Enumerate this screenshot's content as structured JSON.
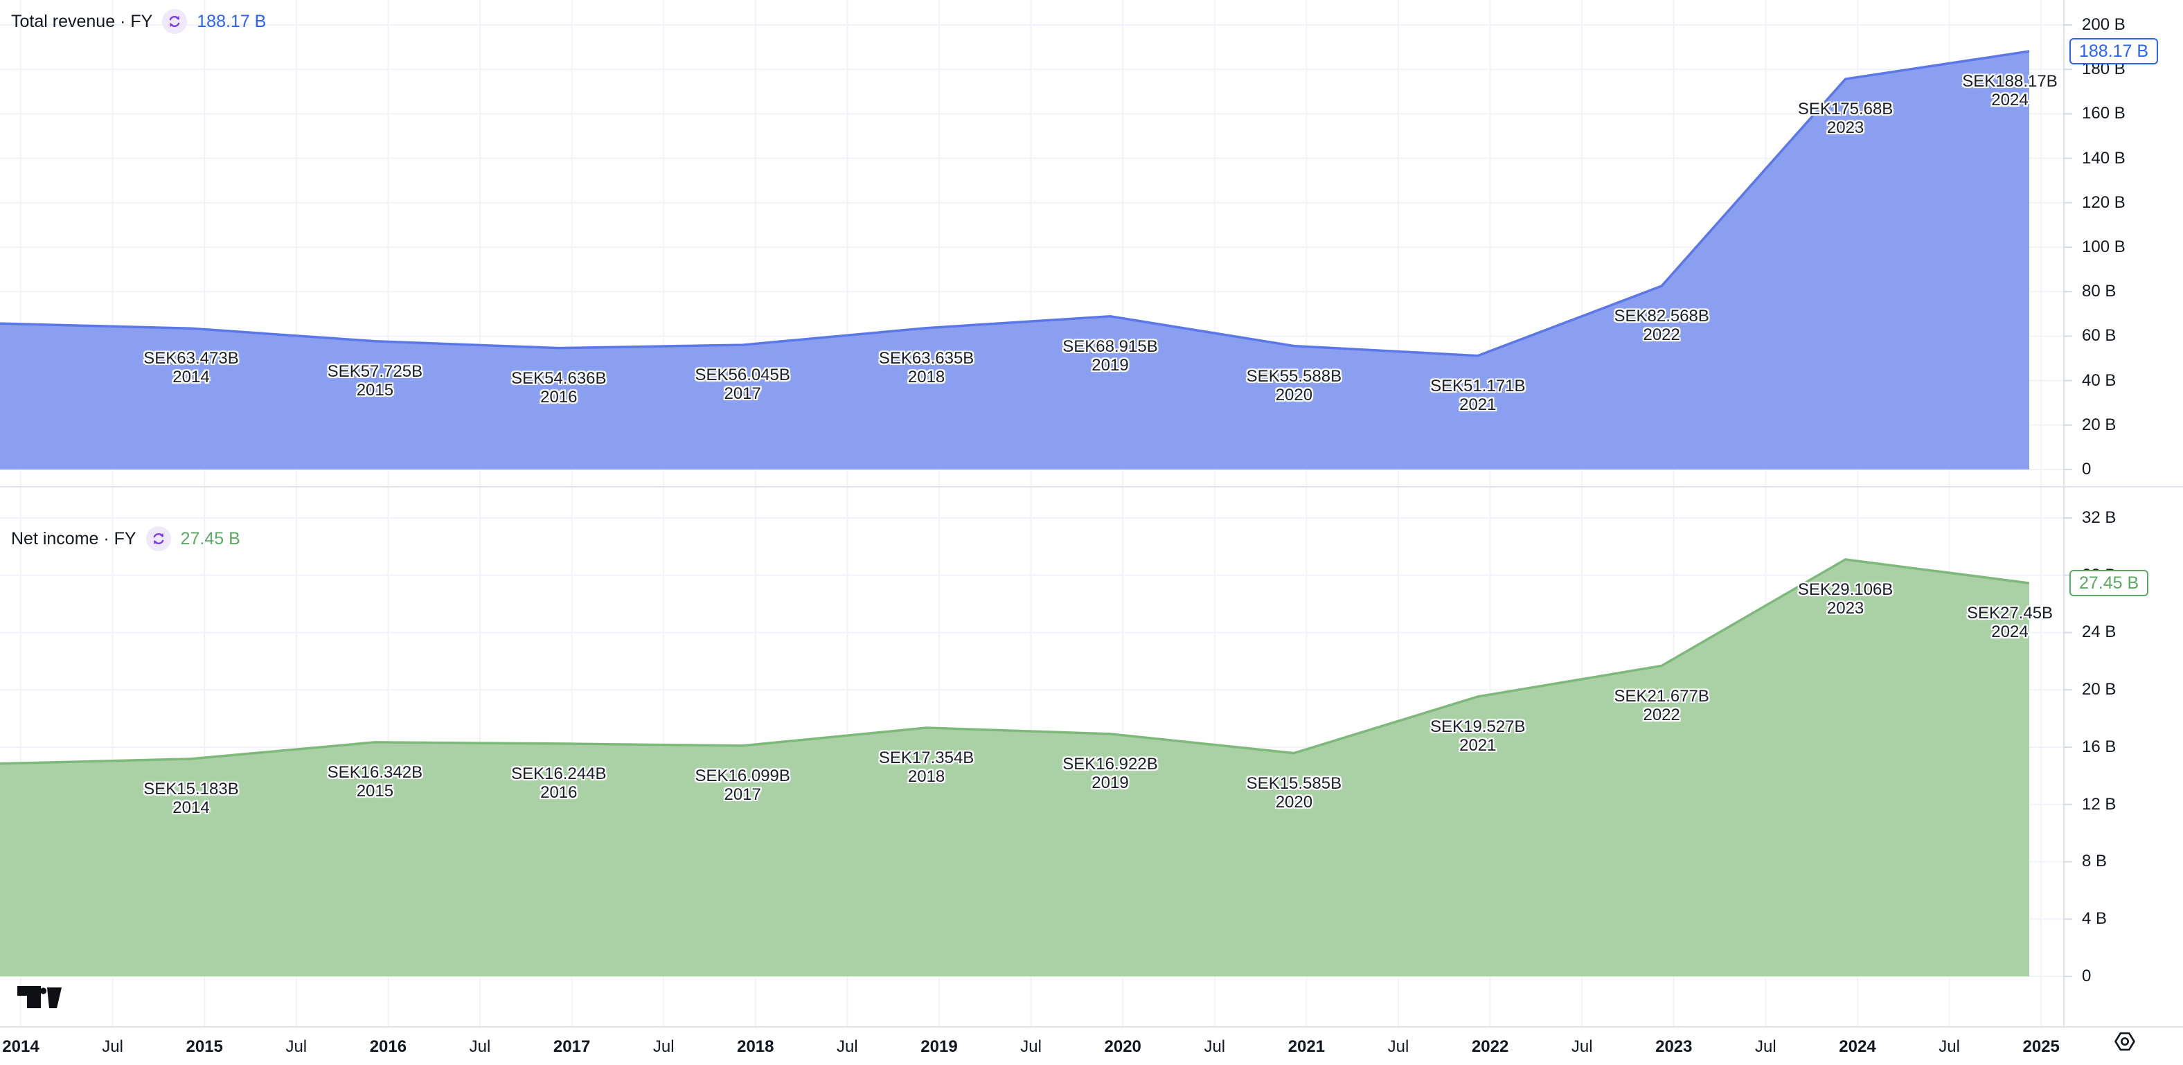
{
  "chart_data": [
    {
      "type": "area",
      "title": "Total revenue · FY",
      "current_value": "188.17 B",
      "currency": "SEK",
      "unit": "billions SEK",
      "x": [
        2014,
        2015,
        2016,
        2017,
        2018,
        2019,
        2020,
        2021,
        2022,
        2023,
        2024
      ],
      "values": [
        63.473,
        57.725,
        54.636,
        56.045,
        63.635,
        68.915,
        55.588,
        51.171,
        82.568,
        175.68,
        188.17
      ],
      "point_labels": [
        "SEK63.473B",
        "SEK57.725B",
        "SEK54.636B",
        "SEK56.045B",
        "SEK63.635B",
        "SEK68.915B",
        "SEK55.588B",
        "SEK51.171B",
        "SEK82.568B",
        "SEK175.68B",
        "SEK188.17B"
      ],
      "lead_in_value": 65.7,
      "ylim": [
        0,
        200
      ],
      "grid": true,
      "legend_position": "top-left",
      "y_ticks": [
        {
          "v": 200,
          "label": "200 B"
        },
        {
          "v": 180,
          "label": "180 B"
        },
        {
          "v": 160,
          "label": "160 B"
        },
        {
          "v": 140,
          "label": "140 B"
        },
        {
          "v": 120,
          "label": "120 B"
        },
        {
          "v": 100,
          "label": "100 B"
        },
        {
          "v": 80,
          "label": "80 B"
        },
        {
          "v": 60,
          "label": "60 B"
        },
        {
          "v": 40,
          "label": "40 B"
        },
        {
          "v": 20,
          "label": "20 B"
        },
        {
          "v": 0,
          "label": "0"
        }
      ],
      "axis_marker": {
        "v": 188.17,
        "label": "188.17 B"
      },
      "colors": {
        "accent": "#2962FF",
        "line": "#5B77E8",
        "fill": "#8A9FF0"
      }
    },
    {
      "type": "area",
      "title": "Net income · FY",
      "current_value": "27.45 B",
      "currency": "SEK",
      "unit": "billions SEK",
      "x": [
        2014,
        2015,
        2016,
        2017,
        2018,
        2019,
        2020,
        2021,
        2022,
        2023,
        2024
      ],
      "values": [
        15.183,
        16.342,
        16.244,
        16.099,
        17.354,
        16.922,
        15.585,
        19.527,
        21.677,
        29.106,
        27.45
      ],
      "point_labels": [
        "SEK15.183B",
        "SEK16.342B",
        "SEK16.244B",
        "SEK16.099B",
        "SEK17.354B",
        "SEK16.922B",
        "SEK15.585B",
        "SEK19.527B",
        "SEK21.677B",
        "SEK29.106B",
        "SEK27.45B"
      ],
      "lead_in_value": 14.85,
      "ylim": [
        0,
        32
      ],
      "grid": true,
      "legend_position": "top-left",
      "y_ticks": [
        {
          "v": 32,
          "label": "32 B"
        },
        {
          "v": 28,
          "label": "28 B"
        },
        {
          "v": 24,
          "label": "24 B"
        },
        {
          "v": 20,
          "label": "20 B"
        },
        {
          "v": 16,
          "label": "16 B"
        },
        {
          "v": 12,
          "label": "12 B"
        },
        {
          "v": 8,
          "label": "8 B"
        },
        {
          "v": 4,
          "label": "4 B"
        },
        {
          "v": 0,
          "label": "0"
        }
      ],
      "axis_marker": {
        "v": 27.45,
        "label": "27.45 B"
      },
      "colors": {
        "accent": "#5DA863",
        "line": "#7EB97B",
        "fill": "#AAD1A6"
      }
    }
  ],
  "time_axis": {
    "labels": [
      "2014",
      "Jul",
      "2015",
      "Jul",
      "2016",
      "Jul",
      "2017",
      "Jul",
      "2018",
      "Jul",
      "2019",
      "Jul",
      "2020",
      "Jul",
      "2021",
      "Jul",
      "2022",
      "Jul",
      "2023",
      "Jul",
      "2024",
      "Jul",
      "2025"
    ]
  },
  "icons": {
    "refresh": "sync-circle-arrows",
    "settings": "hexagon-gear",
    "logo": "tradingview-mark"
  }
}
